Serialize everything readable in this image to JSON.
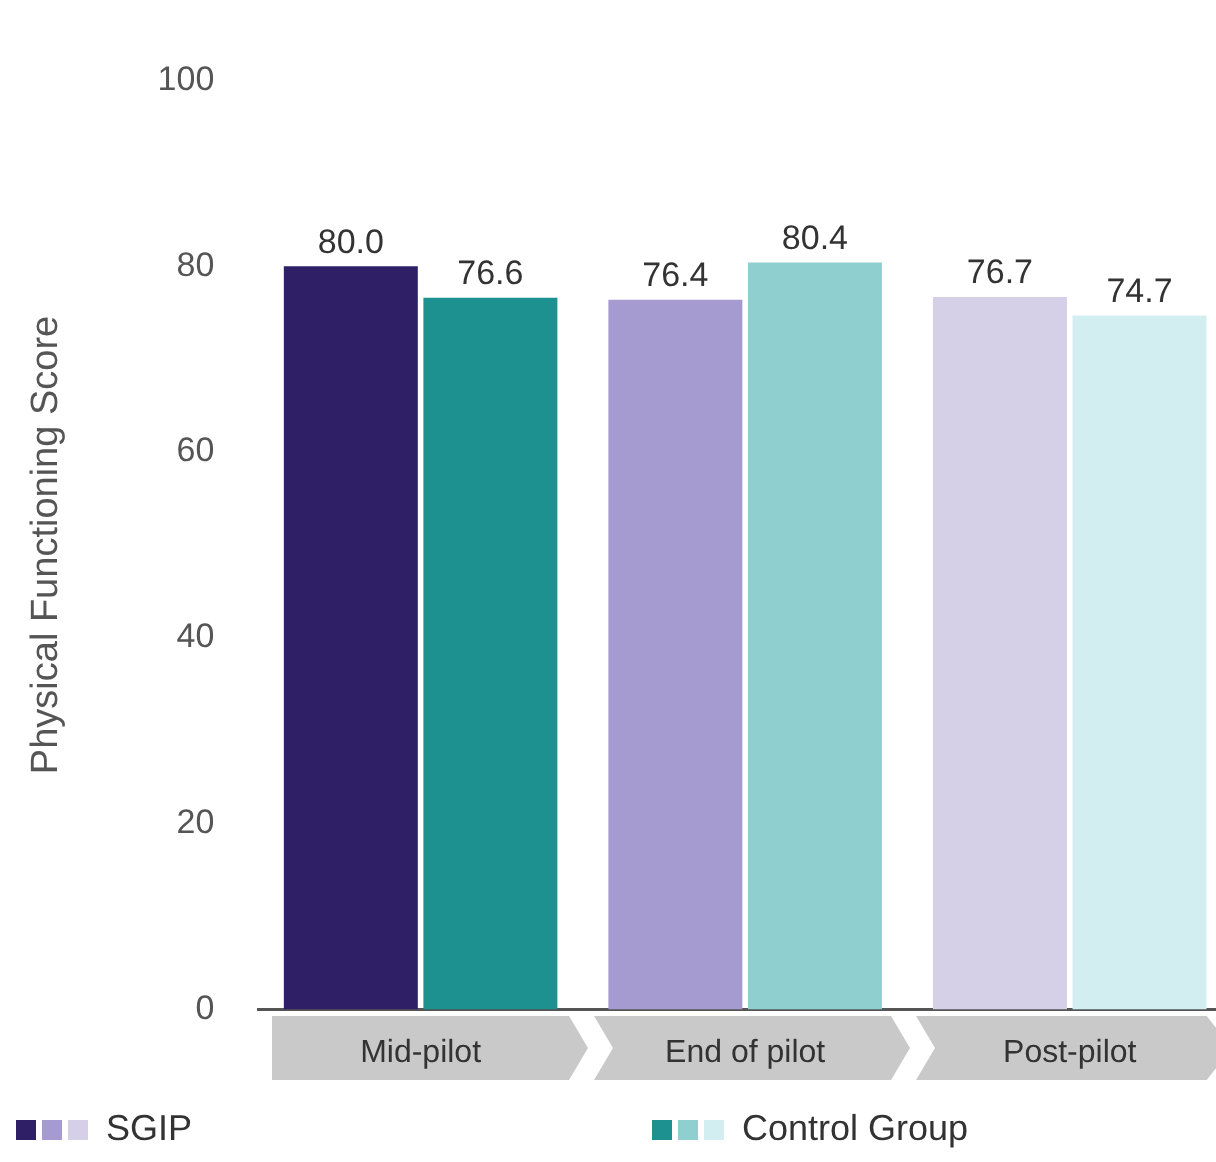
{
  "chart_data": {
    "type": "bar",
    "ylabel": "Physical Functioning Score",
    "categories": [
      "Mid-pilot",
      "End of pilot",
      "Post-pilot"
    ],
    "series": [
      {
        "name": "SGIP",
        "colors": [
          "#2e1f66",
          "#a59bd0",
          "#d5cfe8"
        ],
        "values": [
          80.0,
          76.4,
          76.7
        ],
        "value_labels": [
          "80.0",
          "76.4",
          "76.7"
        ]
      },
      {
        "name": "Control Group",
        "colors": [
          "#1d9090",
          "#8fcfcf",
          "#d3eef0"
        ],
        "values": [
          76.6,
          80.4,
          74.7
        ],
        "value_labels": [
          "76.6",
          "80.4",
          "74.7"
        ]
      }
    ],
    "ylim": [
      0,
      100
    ],
    "yticks": [
      0,
      20,
      40,
      60,
      80,
      100
    ],
    "grid": false,
    "legend": "bottom"
  }
}
